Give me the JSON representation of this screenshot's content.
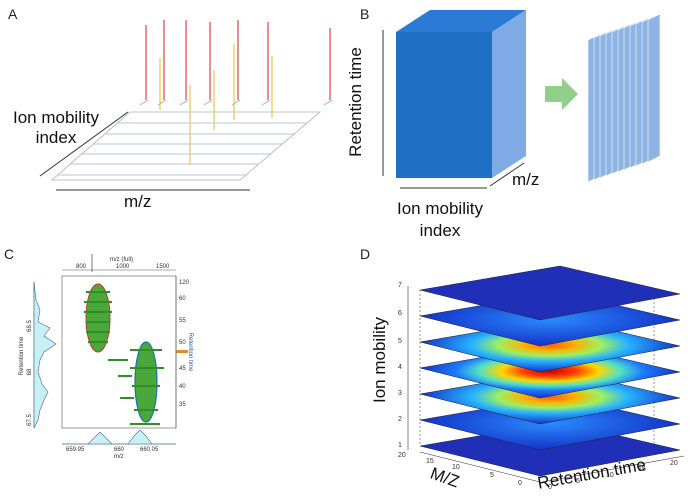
{
  "panels": {
    "a": {
      "letter": "A",
      "y_label_line1": "Ion mobility",
      "y_label_line2": "index",
      "x_label": "m/z"
    },
    "b": {
      "letter": "B",
      "y_label": "Retention time",
      "x_label_line1": "Ion mobility",
      "x_label_line2": "index",
      "z_label": "m/z",
      "cube_color": "#1f6fc7",
      "arrow_color": "#8fcf8a",
      "slice_color": "#8db4e2"
    },
    "c": {
      "letter": "C",
      "top_axis_title": "m/z (full)",
      "top_ticks": [
        "800",
        "1000",
        "1500"
      ],
      "right_axis_title": "Retention time",
      "right_ticks": [
        "35",
        "40",
        "45",
        "50",
        "55",
        "60",
        "120"
      ],
      "left_axis_title": "Retention time",
      "left_ticks": [
        "68.5",
        "68",
        "67.5"
      ],
      "bottom_axis_title": "m/z",
      "bottom_ticks": [
        "659.95",
        "660",
        "660.05"
      ]
    },
    "d": {
      "letter": "D",
      "z_axis_label": "Ion mobility",
      "x_axis_label": "Retention time",
      "y_axis_label": "M/Z",
      "z_ticks": [
        "1",
        "2",
        "3",
        "4",
        "5",
        "6",
        "7"
      ],
      "x_ticks": [
        "0",
        "5",
        "10",
        "15",
        "20"
      ],
      "y_ticks": [
        "0",
        "5",
        "10",
        "15",
        "20"
      ],
      "layers": [
        {
          "mobility": 1,
          "intensity": 0.0
        },
        {
          "mobility": 2,
          "intensity": 0.05
        },
        {
          "mobility": 3,
          "intensity": 0.55
        },
        {
          "mobility": 4,
          "intensity": 1.0
        },
        {
          "mobility": 5,
          "intensity": 0.6
        },
        {
          "mobility": 6,
          "intensity": 0.08
        },
        {
          "mobility": 7,
          "intensity": 0.0
        }
      ]
    }
  }
}
